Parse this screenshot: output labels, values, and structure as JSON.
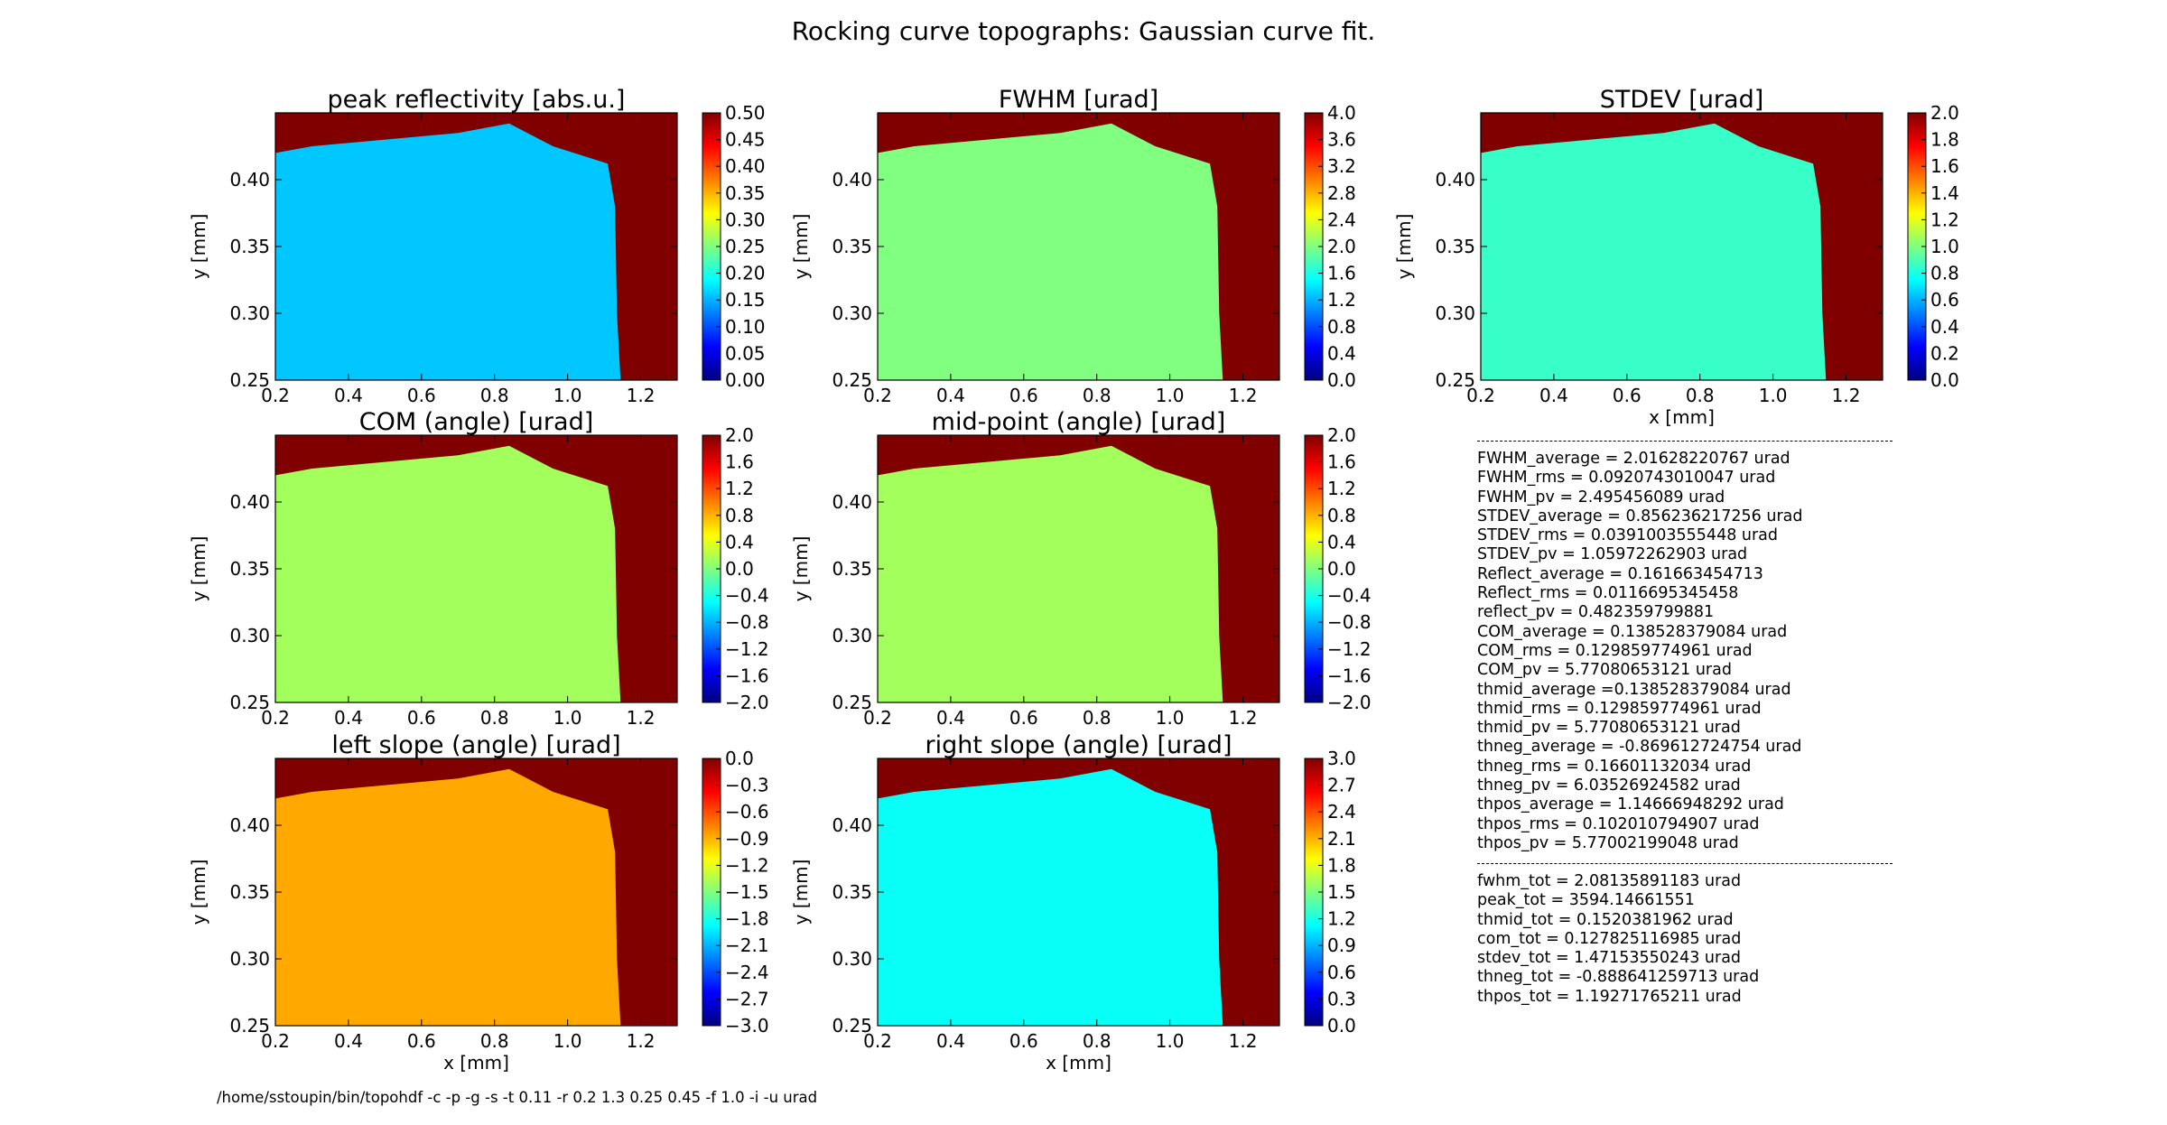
{
  "suptitle": "Rocking curve topographs: Gaussian curve fit.",
  "command_line": "/home/sstoupin/bin/topohdf -c -p -g -s -t 0.11 -r 0.2 1.3 0.25 0.45 -f 1.0 -i -u urad",
  "colors": {
    "background": "#800000",
    "jet": [
      "#00007f",
      "#0000ff",
      "#007fff",
      "#00ffff",
      "#7fff7f",
      "#ffff00",
      "#ff7f00",
      "#ff0000",
      "#7f0000"
    ]
  },
  "chart_data": [
    {
      "type": "heatmap",
      "id": "peak",
      "title": "peak reflectivity [abs.u.]",
      "xlabel": "",
      "ylabel": "y [mm]",
      "xlim": [
        0.2,
        1.3
      ],
      "ylim": [
        0.25,
        0.45
      ],
      "xticks": [
        "0.2",
        "0.4",
        "0.6",
        "0.8",
        "1.0",
        "1.2"
      ],
      "yticks": [
        "0.25",
        "0.30",
        "0.35",
        "0.40"
      ],
      "clim": [
        0.0,
        0.5
      ],
      "cticks": [
        "0.00",
        "0.05",
        "0.10",
        "0.15",
        "0.20",
        "0.25",
        "0.30",
        "0.35",
        "0.40",
        "0.45",
        "0.50"
      ],
      "sample_mean_value": 0.16
    },
    {
      "type": "heatmap",
      "id": "fwhm",
      "title": "FWHM [urad]",
      "xlabel": "",
      "ylabel": "y [mm]",
      "xlim": [
        0.2,
        1.3
      ],
      "ylim": [
        0.25,
        0.45
      ],
      "xticks": [
        "0.2",
        "0.4",
        "0.6",
        "0.8",
        "1.0",
        "1.2"
      ],
      "yticks": [
        "0.25",
        "0.30",
        "0.35",
        "0.40"
      ],
      "clim": [
        0.0,
        4.0
      ],
      "cticks": [
        "0.0",
        "0.4",
        "0.8",
        "1.2",
        "1.6",
        "2.0",
        "2.4",
        "2.8",
        "3.2",
        "3.6",
        "4.0"
      ],
      "sample_mean_value": 2.0
    },
    {
      "type": "heatmap",
      "id": "stdev",
      "title": "STDEV [urad]",
      "xlabel": "x [mm]",
      "ylabel": "y [mm]",
      "xlim": [
        0.2,
        1.3
      ],
      "ylim": [
        0.25,
        0.45
      ],
      "xticks": [
        "0.2",
        "0.4",
        "0.6",
        "0.8",
        "1.0",
        "1.2"
      ],
      "yticks": [
        "0.25",
        "0.30",
        "0.35",
        "0.40"
      ],
      "clim": [
        0.0,
        2.0
      ],
      "cticks": [
        "0.0",
        "0.2",
        "0.4",
        "0.6",
        "0.8",
        "1.0",
        "1.2",
        "1.4",
        "1.6",
        "1.8",
        "2.0"
      ],
      "sample_mean_value": 0.86
    },
    {
      "type": "heatmap",
      "id": "com",
      "title": "COM (angle) [urad]",
      "xlabel": "",
      "ylabel": "y [mm]",
      "xlim": [
        0.2,
        1.3
      ],
      "ylim": [
        0.25,
        0.45
      ],
      "xticks": [
        "0.2",
        "0.4",
        "0.6",
        "0.8",
        "1.0",
        "1.2"
      ],
      "yticks": [
        "0.25",
        "0.30",
        "0.35",
        "0.40"
      ],
      "clim": [
        -2.0,
        2.0
      ],
      "cticks": [
        "−2.0",
        "−1.6",
        "−1.2",
        "−0.8",
        "−0.4",
        "0.0",
        "0.4",
        "0.8",
        "1.2",
        "1.6",
        "2.0"
      ],
      "sample_mean_value": 0.14
    },
    {
      "type": "heatmap",
      "id": "midpoint",
      "title": "mid-point (angle) [urad]",
      "xlabel": "",
      "ylabel": "y [mm]",
      "xlim": [
        0.2,
        1.3
      ],
      "ylim": [
        0.25,
        0.45
      ],
      "xticks": [
        "0.2",
        "0.4",
        "0.6",
        "0.8",
        "1.0",
        "1.2"
      ],
      "yticks": [
        "0.25",
        "0.30",
        "0.35",
        "0.40"
      ],
      "clim": [
        -2.0,
        2.0
      ],
      "cticks": [
        "−2.0",
        "−1.6",
        "−1.2",
        "−0.8",
        "−0.4",
        "0.0",
        "0.4",
        "0.8",
        "1.2",
        "1.6",
        "2.0"
      ],
      "sample_mean_value": 0.14
    },
    {
      "type": "heatmap",
      "id": "leftslope",
      "title": "left slope (angle) [urad]",
      "xlabel": "x [mm]",
      "ylabel": "y [mm]",
      "xlim": [
        0.2,
        1.3
      ],
      "ylim": [
        0.25,
        0.45
      ],
      "xticks": [
        "0.2",
        "0.4",
        "0.6",
        "0.8",
        "1.0",
        "1.2"
      ],
      "yticks": [
        "0.25",
        "0.30",
        "0.35",
        "0.40"
      ],
      "clim": [
        -3.0,
        0.0
      ],
      "cticks": [
        "−3.0",
        "−2.7",
        "−2.4",
        "−2.1",
        "−1.8",
        "−1.5",
        "−1.2",
        "−0.9",
        "−0.6",
        "−0.3",
        "0.0"
      ],
      "sample_mean_value": -0.87
    },
    {
      "type": "heatmap",
      "id": "rightslope",
      "title": "right slope (angle) [urad]",
      "xlabel": "x [mm]",
      "ylabel": "y [mm]",
      "xlim": [
        0.2,
        1.3
      ],
      "ylim": [
        0.25,
        0.45
      ],
      "xticks": [
        "0.2",
        "0.4",
        "0.6",
        "0.8",
        "1.0",
        "1.2"
      ],
      "yticks": [
        "0.25",
        "0.30",
        "0.35",
        "0.40"
      ],
      "clim": [
        0.0,
        3.0
      ],
      "cticks": [
        "0.0",
        "0.3",
        "0.6",
        "0.9",
        "1.2",
        "1.5",
        "1.8",
        "2.1",
        "2.4",
        "2.7",
        "3.0"
      ],
      "sample_mean_value": 1.15
    }
  ],
  "stats_block_1": [
    "FWHM_average = 2.01628220767 urad",
    "FWHM_rms = 0.0920743010047 urad",
    "FWHM_pv = 2.495456089 urad",
    "STDEV_average = 0.856236217256 urad",
    "STDEV_rms = 0.0391003555448 urad",
    "STDEV_pv = 1.05972262903 urad",
    "Reflect_average = 0.161663454713",
    "Reflect_rms = 0.0116695345458",
    "reflect_pv = 0.482359799881",
    "COM_average = 0.138528379084 urad",
    "COM_rms = 0.129859774961 urad",
    "COM_pv = 5.77080653121 urad",
    "thmid_average =0.138528379084 urad",
    "thmid_rms = 0.129859774961 urad",
    "thmid_pv = 5.77080653121 urad",
    "thneg_average = -0.869612724754 urad",
    "thneg_rms = 0.16601132034 urad",
    "thneg_pv = 6.03526924582 urad",
    "thpos_average = 1.14666948292 urad",
    "thpos_rms = 0.102010794907 urad",
    "thpos_pv = 5.77002199048 urad"
  ],
  "stats_block_2": [
    "fwhm_tot = 2.08135891183 urad",
    "peak_tot = 3594.14661551",
    "thmid_tot = 0.1520381962 urad",
    "com_tot = 0.127825116985 urad",
    "stdev_tot = 1.47153550243 urad",
    "thneg_tot = -0.888641259713 urad",
    "thpos_tot = 1.19271765211 urad"
  ]
}
